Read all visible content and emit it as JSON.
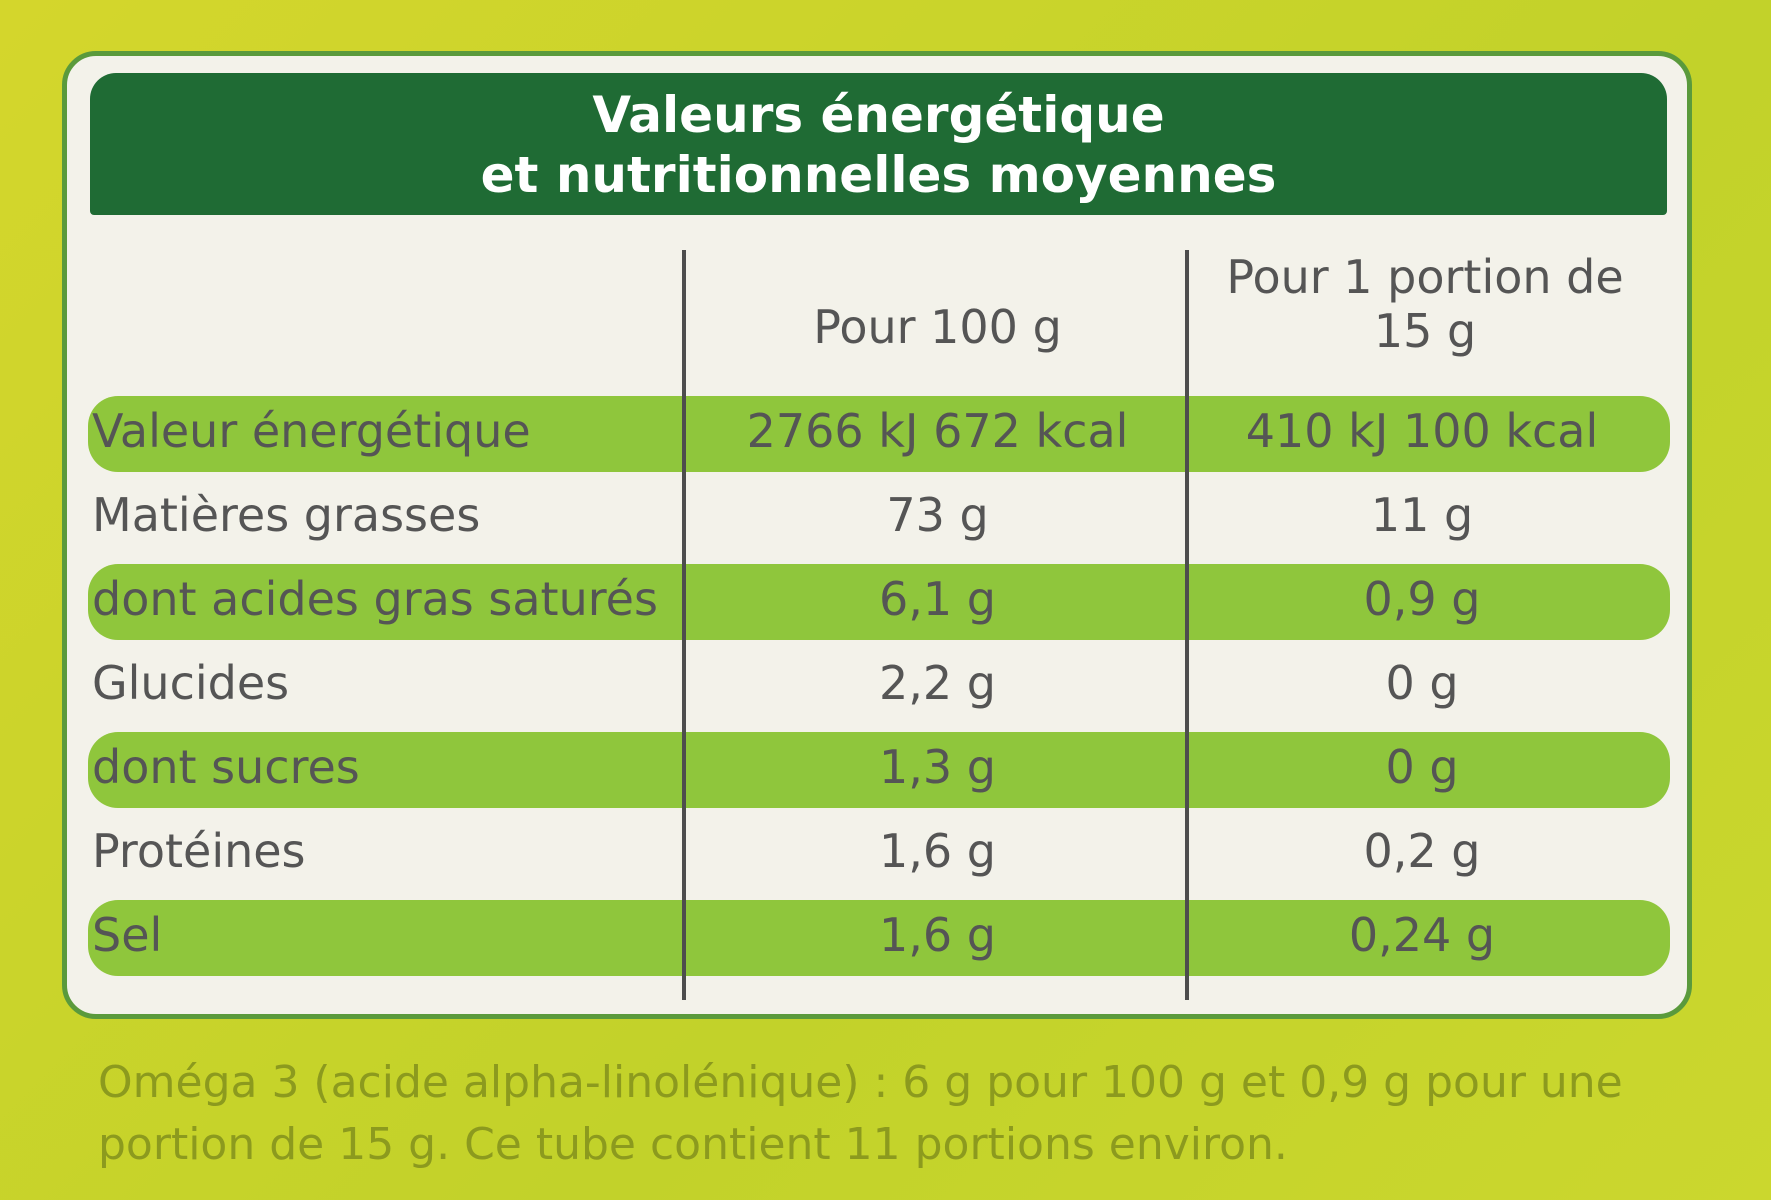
{
  "header": {
    "title_lines": [
      "Valeurs énergétique",
      "et nutritionnelles moyennes"
    ]
  },
  "table": {
    "columns": [
      "Pour 100 g",
      "Pour 1 portion de 15 g"
    ],
    "rows": [
      [
        "Valeur énergétique",
        "2766 kJ 672 kcal",
        "410 kJ 100 kcal"
      ],
      [
        "Matières grasses",
        "73 g",
        "11 g"
      ],
      [
        "dont acides gras saturés",
        "6,1 g",
        "0,9 g"
      ],
      [
        "Glucides",
        "2,2 g",
        "0 g"
      ],
      [
        "dont sucres",
        "1,3 g",
        "0 g"
      ],
      [
        "Protéines",
        "1,6 g",
        "0,2 g"
      ],
      [
        "Sel",
        "1,6 g",
        "0,24 g"
      ]
    ]
  },
  "footer": {
    "note": "Oméga 3 (acide alpha-linolénique) : 6 g pour 100 g et 0,9 g pour une portion de 15 g. Ce tube contient 11 portions environ."
  }
}
